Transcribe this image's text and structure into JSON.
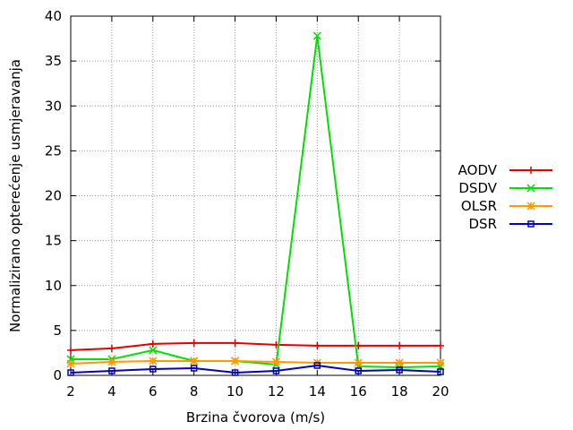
{
  "chart_data": {
    "type": "line",
    "xlabel": "Brzina čvorova (m/s)",
    "ylabel": "Normalizirano opterećenje usmjeravanja",
    "x": [
      2,
      4,
      6,
      8,
      10,
      12,
      14,
      16,
      18,
      20
    ],
    "xlim": [
      2,
      20
    ],
    "ylim": [
      0,
      40
    ],
    "xticks": [
      "2",
      "4",
      "6",
      "8",
      "10",
      "12",
      "14",
      "16",
      "18",
      "20"
    ],
    "yticks": [
      "0",
      "5",
      "10",
      "15",
      "20",
      "25",
      "30",
      "35",
      "40"
    ],
    "grid": true,
    "legend_position": "right",
    "series": [
      {
        "name": "AODV",
        "color": "#e00000",
        "marker": "plus",
        "values": [
          2.8,
          3.0,
          3.5,
          3.6,
          3.6,
          3.4,
          3.3,
          3.3,
          3.3,
          3.3
        ]
      },
      {
        "name": "DSDV",
        "color": "#00e000",
        "marker": "cross",
        "values": [
          1.8,
          1.8,
          2.8,
          1.6,
          1.6,
          1.2,
          37.8,
          1.0,
          0.9,
          1.0
        ]
      },
      {
        "name": "OLSR",
        "color": "#ff9900",
        "marker": "asterisk",
        "values": [
          1.3,
          1.5,
          1.6,
          1.6,
          1.6,
          1.5,
          1.4,
          1.4,
          1.4,
          1.4
        ]
      },
      {
        "name": "DSR",
        "color": "#0000c0",
        "marker": "square",
        "values": [
          0.3,
          0.5,
          0.7,
          0.8,
          0.3,
          0.5,
          1.1,
          0.5,
          0.6,
          0.4
        ]
      }
    ]
  }
}
